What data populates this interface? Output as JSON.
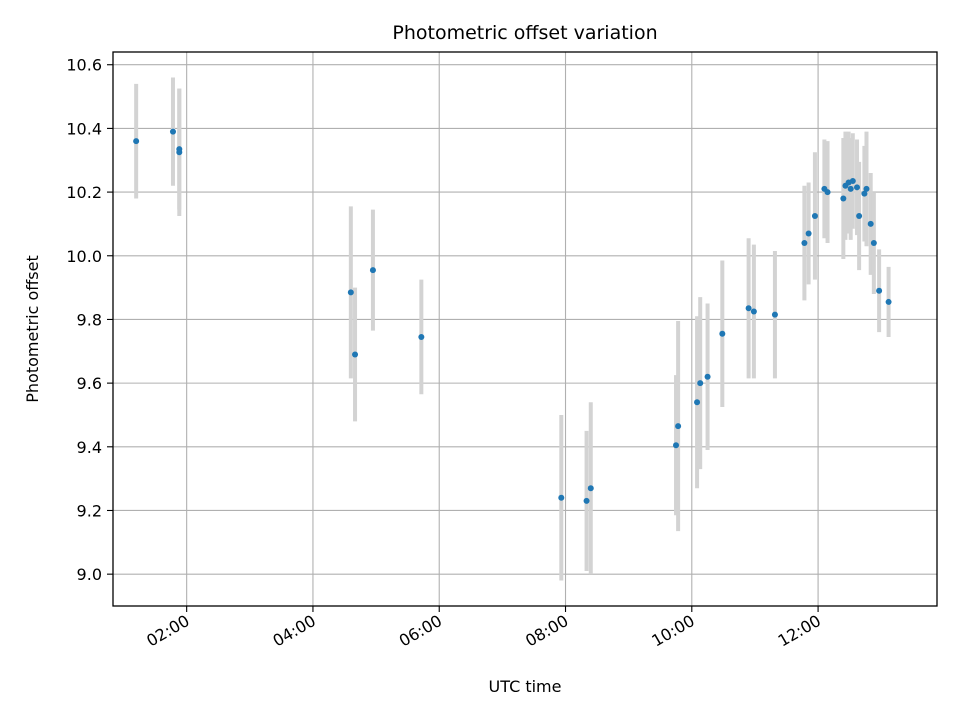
{
  "chart_data": {
    "type": "scatter",
    "title": "Photometric offset variation",
    "xlabel": "UTC time",
    "ylabel": "Photometric offset",
    "x_unit": "UTC time of day (HH:MM)",
    "xlim": [
      "00:50",
      "13:53"
    ],
    "ylim": [
      8.9,
      10.64
    ],
    "x_ticks": [
      "02:00",
      "04:00",
      "06:00",
      "08:00",
      "10:00",
      "12:00"
    ],
    "y_ticks": [
      9.0,
      9.2,
      9.4,
      9.6,
      9.8,
      10.0,
      10.2,
      10.4,
      10.6
    ],
    "y_tick_labels": [
      "9.0",
      "9.2",
      "9.4",
      "9.6",
      "9.8",
      "10.0",
      "10.2",
      "10.4",
      "10.6"
    ],
    "grid": true,
    "marker_color": "#1f77b4",
    "errorbar_color": "#d3d3d3",
    "points": [
      {
        "x": "01:12",
        "y": 10.36,
        "err": 0.18
      },
      {
        "x": "01:47",
        "y": 10.39,
        "err": 0.17
      },
      {
        "x": "01:53",
        "y": 10.335,
        "err": 0.19
      },
      {
        "x": "01:53",
        "y": 10.325,
        "err": 0.2
      },
      {
        "x": "04:36",
        "y": 9.885,
        "err": 0.27
      },
      {
        "x": "04:40",
        "y": 9.69,
        "err": 0.21
      },
      {
        "x": "04:57",
        "y": 9.955,
        "err": 0.19
      },
      {
        "x": "05:43",
        "y": 9.745,
        "err": 0.18
      },
      {
        "x": "07:56",
        "y": 9.24,
        "err": 0.26
      },
      {
        "x": "08:20",
        "y": 9.23,
        "err": 0.22
      },
      {
        "x": "08:24",
        "y": 9.27,
        "err": 0.27
      },
      {
        "x": "09:45",
        "y": 9.405,
        "err": 0.22
      },
      {
        "x": "09:47",
        "y": 9.465,
        "err": 0.33
      },
      {
        "x": "10:05",
        "y": 9.54,
        "err": 0.27
      },
      {
        "x": "10:08",
        "y": 9.6,
        "err": 0.27
      },
      {
        "x": "10:15",
        "y": 9.62,
        "err": 0.23
      },
      {
        "x": "10:29",
        "y": 9.755,
        "err": 0.23
      },
      {
        "x": "10:54",
        "y": 9.835,
        "err": 0.22
      },
      {
        "x": "10:59",
        "y": 9.825,
        "err": 0.21
      },
      {
        "x": "11:19",
        "y": 9.815,
        "err": 0.2
      },
      {
        "x": "11:47",
        "y": 10.04,
        "err": 0.18
      },
      {
        "x": "11:51",
        "y": 10.07,
        "err": 0.16
      },
      {
        "x": "11:57",
        "y": 10.125,
        "err": 0.2
      },
      {
        "x": "12:06",
        "y": 10.21,
        "err": 0.155
      },
      {
        "x": "12:09",
        "y": 10.2,
        "err": 0.16
      },
      {
        "x": "12:24",
        "y": 10.18,
        "err": 0.19
      },
      {
        "x": "12:26",
        "y": 10.22,
        "err": 0.17
      },
      {
        "x": "12:29",
        "y": 10.23,
        "err": 0.16
      },
      {
        "x": "12:31",
        "y": 10.21,
        "err": 0.16
      },
      {
        "x": "12:33",
        "y": 10.235,
        "err": 0.15
      },
      {
        "x": "12:37",
        "y": 10.215,
        "err": 0.15
      },
      {
        "x": "12:39",
        "y": 10.125,
        "err": 0.17
      },
      {
        "x": "12:44",
        "y": 10.195,
        "err": 0.15
      },
      {
        "x": "12:46",
        "y": 10.21,
        "err": 0.18
      },
      {
        "x": "12:50",
        "y": 10.1,
        "err": 0.16
      },
      {
        "x": "12:53",
        "y": 10.04,
        "err": 0.16
      },
      {
        "x": "12:58",
        "y": 9.89,
        "err": 0.13
      },
      {
        "x": "13:07",
        "y": 9.855,
        "err": 0.11
      }
    ]
  }
}
